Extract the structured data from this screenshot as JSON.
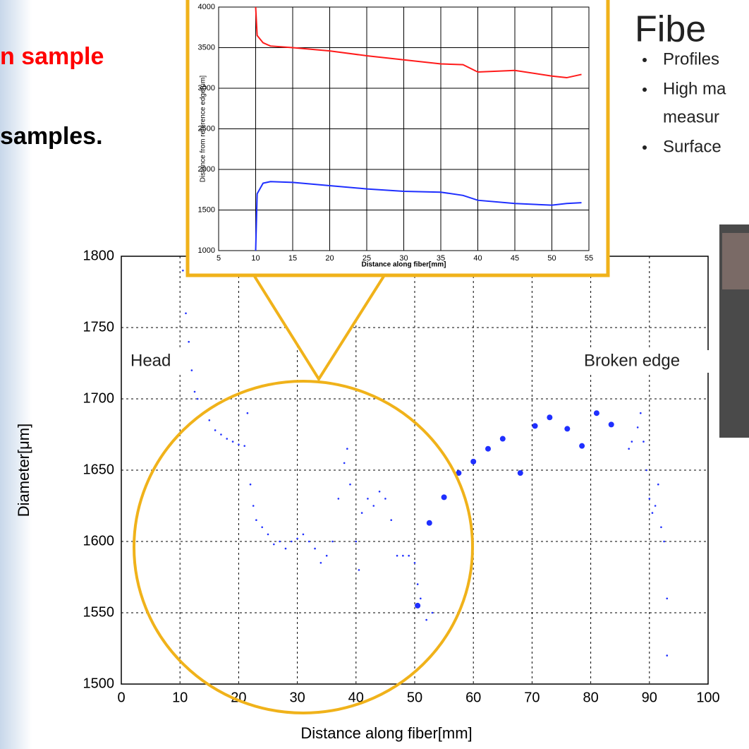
{
  "slide": {
    "heading_red": "n sample",
    "heading_black": "samples.",
    "title": "Fibe",
    "bullets": [
      [
        "Profiles"
      ],
      [
        "High ma",
        "measur"
      ],
      [
        "Surface"
      ]
    ]
  },
  "chart_data": [
    {
      "type": "scatter",
      "xlabel": "Distance along fiber[mm]",
      "ylabel": "Diameter[μm]",
      "annotations": [
        "Head",
        "Broken edge"
      ],
      "xlim": [
        0,
        100
      ],
      "xticks": [
        0,
        10,
        20,
        30,
        40,
        50,
        60,
        70,
        80,
        90,
        100
      ],
      "ylim": [
        1500,
        1800
      ],
      "yticks": [
        1500,
        1550,
        1600,
        1650,
        1700,
        1750,
        1800
      ],
      "grid": true,
      "series": [
        {
          "color": "#1f2fff",
          "marker_size": 2,
          "x": [
            10.5,
            11,
            11.5,
            12,
            12.5,
            13,
            14,
            15,
            16,
            17,
            18,
            19,
            20,
            21,
            21.5,
            22,
            22.5,
            23,
            24,
            25,
            26,
            27,
            28,
            29,
            30,
            31,
            32,
            33,
            34,
            35,
            36,
            37,
            38,
            38.5,
            39,
            40,
            40.5,
            41,
            42,
            43,
            44,
            45,
            46,
            47,
            48,
            49,
            50,
            50.5,
            51,
            52,
            53,
            86.5,
            87,
            88,
            88.5,
            89,
            89.5,
            90,
            90.5,
            91,
            91.5,
            92,
            92.5,
            93,
            93
          ],
          "values": [
            1790,
            1760,
            1740,
            1720,
            1705,
            1700,
            1690,
            1685,
            1678,
            1675,
            1672,
            1670,
            1668,
            1667,
            1690,
            1640,
            1625,
            1615,
            1610,
            1605,
            1598,
            1600,
            1595,
            1600,
            1602,
            1605,
            1600,
            1595,
            1585,
            1590,
            1600,
            1630,
            1655,
            1665,
            1640,
            1600,
            1580,
            1620,
            1630,
            1625,
            1635,
            1630,
            1615,
            1590,
            1590,
            1590,
            1585,
            1570,
            1560,
            1545,
            1550,
            1665,
            1670,
            1680,
            1690,
            1670,
            1650,
            1630,
            1620,
            1625,
            1640,
            1610,
            1600,
            1560,
            1520
          ]
        },
        {
          "color": "#1f2fff",
          "marker_size": 6,
          "x": [
            50.5,
            52.5,
            55,
            57.5,
            60,
            62.5,
            65,
            68,
            70.5,
            73,
            76,
            78.5,
            81,
            83.5
          ],
          "values": [
            1555,
            1613,
            1631,
            1648,
            1656,
            1665,
            1672,
            1648,
            1681,
            1687,
            1679,
            1667,
            1690,
            1682
          ]
        }
      ]
    },
    {
      "type": "line",
      "xlabel": "Distance along fiber[mm]",
      "ylabel": "Distance from reference edge[μm]",
      "xlim": [
        5,
        55
      ],
      "xticks": [
        5,
        10,
        15,
        20,
        25,
        30,
        35,
        40,
        45,
        50,
        55
      ],
      "ylim": [
        1000,
        4000
      ],
      "yticks": [
        1000,
        1500,
        2000,
        2500,
        3000,
        3500,
        4000
      ],
      "grid": true,
      "series": [
        {
          "color": "#ff1a1a",
          "x": [
            10,
            10.2,
            11,
            12,
            15,
            20,
            25,
            30,
            35,
            38,
            40,
            45,
            50,
            52,
            54
          ],
          "values": [
            4000,
            3650,
            3560,
            3520,
            3500,
            3460,
            3400,
            3350,
            3300,
            3290,
            3200,
            3220,
            3150,
            3130,
            3170
          ]
        },
        {
          "color": "#1f2fff",
          "x": [
            10,
            10.2,
            11,
            12,
            15,
            20,
            25,
            30,
            35,
            38,
            40,
            45,
            50,
            52,
            54
          ],
          "values": [
            1000,
            1700,
            1830,
            1850,
            1840,
            1800,
            1760,
            1730,
            1720,
            1680,
            1620,
            1580,
            1560,
            1580,
            1590
          ]
        }
      ]
    }
  ]
}
